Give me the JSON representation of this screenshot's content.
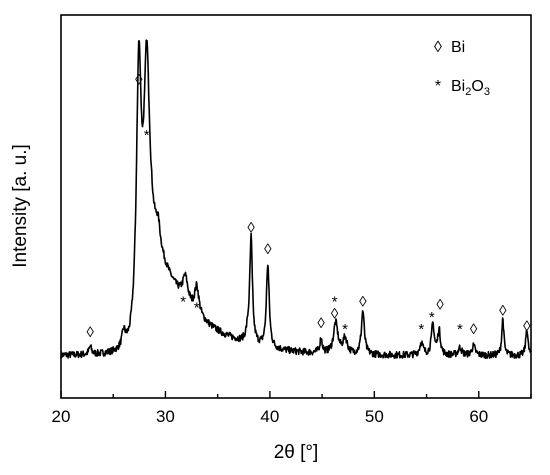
{
  "chart_data": {
    "type": "line",
    "xlabel": "2θ [°]",
    "ylabel": "Intensity [a. u.]",
    "xlim": [
      20,
      65
    ],
    "xticks": [
      20,
      30,
      40,
      50,
      60
    ],
    "yticks_shown": false,
    "ylim": [
      0,
      100
    ],
    "grid": false,
    "legend_position": "top-right",
    "legend": [
      {
        "symbol": "◊",
        "label": "Bi"
      },
      {
        "symbol": "*",
        "label_main": "Bi",
        "sub1": "2",
        "mid": "O",
        "sub2": "3"
      }
    ],
    "series": [
      {
        "values_note": "approximate relative intensity",
        "baseline": 4,
        "peaks": [
          {
            "x": 22.8,
            "height": 2.5,
            "width": 0.15
          },
          {
            "x": 26.0,
            "height": 5,
            "width": 0.2
          },
          {
            "x": 27.45,
            "height": 84,
            "width": 0.28
          },
          {
            "x": 28.2,
            "height": 56,
            "width": 0.3
          },
          {
            "x": 29.3,
            "height": 7,
            "width": 0.25
          },
          {
            "x": 31.9,
            "height": 8,
            "width": 0.3
          },
          {
            "x": 33.0,
            "height": 9,
            "width": 0.25
          },
          {
            "x": 37.9,
            "height": 3,
            "width": 0.2
          },
          {
            "x": 38.2,
            "height": 34,
            "width": 0.15
          },
          {
            "x": 39.8,
            "height": 27,
            "width": 0.16
          },
          {
            "x": 44.9,
            "height": 4.5,
            "width": 0.15
          },
          {
            "x": 46.3,
            "height": 10,
            "width": 0.25
          },
          {
            "x": 47.2,
            "height": 5,
            "width": 0.25
          },
          {
            "x": 48.9,
            "height": 14,
            "width": 0.17
          },
          {
            "x": 54.5,
            "height": 4,
            "width": 0.2
          },
          {
            "x": 55.6,
            "height": 10,
            "width": 0.16
          },
          {
            "x": 56.2,
            "height": 8,
            "width": 0.16
          },
          {
            "x": 58.2,
            "height": 2.5,
            "width": 0.2
          },
          {
            "x": 59.5,
            "height": 3,
            "width": 0.2
          },
          {
            "x": 62.3,
            "height": 12,
            "width": 0.12
          },
          {
            "x": 64.6,
            "height": 9,
            "width": 0.12
          }
        ],
        "broad_background": {
          "x": 28.5,
          "height": 40,
          "width": 4.0
        }
      }
    ],
    "annotations": [
      {
        "symbol": "◊",
        "x": 22.8,
        "y": 10
      },
      {
        "symbol": "◊",
        "x": 27.45,
        "y": 92
      },
      {
        "symbol": "*",
        "x": 28.2,
        "y": 74
      },
      {
        "symbol": "*",
        "x": 31.7,
        "y": 20
      },
      {
        "symbol": "*",
        "x": 33.0,
        "y": 18
      },
      {
        "symbol": "◊",
        "x": 38.2,
        "y": 44
      },
      {
        "symbol": "◊",
        "x": 39.8,
        "y": 37
      },
      {
        "symbol": "◊",
        "x": 44.9,
        "y": 13
      },
      {
        "symbol": "*",
        "x": 46.2,
        "y": 20
      },
      {
        "symbol": "◊",
        "x": 46.2,
        "y": 16
      },
      {
        "symbol": "*",
        "x": 47.2,
        "y": 11
      },
      {
        "symbol": "◊",
        "x": 48.9,
        "y": 20
      },
      {
        "symbol": "*",
        "x": 54.5,
        "y": 11
      },
      {
        "symbol": "*",
        "x": 55.5,
        "y": 15
      },
      {
        "symbol": "◊",
        "x": 56.3,
        "y": 19
      },
      {
        "symbol": "*",
        "x": 58.2,
        "y": 11
      },
      {
        "symbol": "◊",
        "x": 59.5,
        "y": 11
      },
      {
        "symbol": "◊",
        "x": 62.3,
        "y": 17
      },
      {
        "symbol": "◊",
        "x": 64.6,
        "y": 12
      }
    ]
  }
}
